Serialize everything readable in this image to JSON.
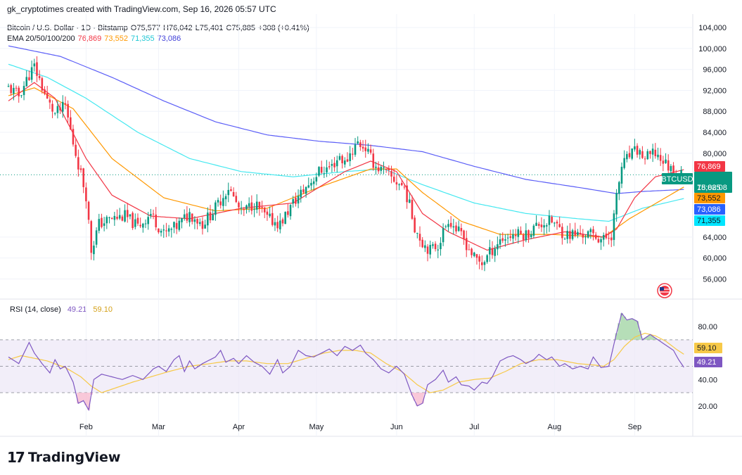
{
  "header": {
    "text": "gk_cryptotimes created with TradingView.com, Sep 16, 2026 05:57 UTC"
  },
  "ohlc": {
    "symbol": "Bitcoin / U.S. Dollar · 1D · Bitstamp",
    "o_label": "O",
    "o": "75,577",
    "h_label": "H",
    "h": "76,042",
    "l_label": "L",
    "l": "75,401",
    "c_label": "C",
    "c": "75,885",
    "change": "+308 (+0.41%)"
  },
  "ema": {
    "label": "EMA 20/50/100/200",
    "v20": "76,869",
    "v50": "73,552",
    "v100": "71,355",
    "v200": "73,086"
  },
  "rsi_legend": {
    "label": "RSI (14, close)",
    "rsi": "49.21",
    "ma": "59.10"
  },
  "price_badges": {
    "symbol": "BTCUSD",
    "last": "75,885",
    "countdown": "18:02:08",
    "ema20": "76,869",
    "ema50": "73,552",
    "ema200": "73,086",
    "ema100": "71,355",
    "rsi": "49.21",
    "rsi_ma": "59.10"
  },
  "colors": {
    "up": "#089981",
    "down": "#f23645",
    "ema20": "#f23645",
    "ema50": "#ff9800",
    "ema100": "#45e8f0",
    "ema200": "#5b5ef7",
    "rsi": "#7e57c2",
    "rsi_ma": "#f7c948",
    "rsi_band": "#ede7f6"
  },
  "logo": {
    "text": "TradingView",
    "mark": "17"
  },
  "chart_data": [
    {
      "type": "candlestick",
      "title": "Bitcoin / U.S. Dollar · 1D · Bitstamp",
      "x_labels": [
        "Feb",
        "Mar",
        "Apr",
        "May",
        "Jun",
        "Jul",
        "Aug",
        "Sep"
      ],
      "y_ticks": [
        104000,
        100000,
        96000,
        92000,
        88000,
        84000,
        80000,
        64000,
        60000,
        56000
      ],
      "y_tick_labels": [
        "104,000",
        "100,000",
        "96,000",
        "92,000",
        "88,000",
        "84,000",
        "80,000",
        "64,000",
        "60,000",
        "56,000"
      ],
      "ylim": [
        53500,
        105500
      ],
      "grid": true,
      "close_path": [
        [
          0,
          92500
        ],
        [
          4,
          91000
        ],
        [
          8,
          95000
        ],
        [
          10,
          96500
        ],
        [
          12,
          94000
        ],
        [
          15,
          90000
        ],
        [
          18,
          87500
        ],
        [
          22,
          89000
        ],
        [
          25,
          82000
        ],
        [
          28,
          76000
        ],
        [
          30,
          72000
        ],
        [
          32,
          61500
        ],
        [
          35,
          66500
        ],
        [
          40,
          67500
        ],
        [
          45,
          68000
        ],
        [
          50,
          66000
        ],
        [
          55,
          68500
        ],
        [
          60,
          64500
        ],
        [
          65,
          66000
        ],
        [
          70,
          68500
        ],
        [
          75,
          66500
        ],
        [
          80,
          69500
        ],
        [
          85,
          73500
        ],
        [
          90,
          68500
        ],
        [
          95,
          70500
        ],
        [
          100,
          67500
        ],
        [
          105,
          66500
        ],
        [
          110,
          70500
        ],
        [
          115,
          73500
        ],
        [
          120,
          76500
        ],
        [
          125,
          77500
        ],
        [
          128,
          79500
        ],
        [
          130,
          78000
        ],
        [
          132,
          80000
        ],
        [
          135,
          82000
        ],
        [
          138,
          81000
        ],
        [
          140,
          79000
        ],
        [
          142,
          77500
        ],
        [
          145,
          76500
        ],
        [
          150,
          74500
        ],
        [
          153,
          73500
        ],
        [
          155,
          70000
        ],
        [
          157,
          66000
        ],
        [
          160,
          63000
        ],
        [
          163,
          61500
        ],
        [
          166,
          62500
        ],
        [
          170,
          67500
        ],
        [
          173,
          65500
        ],
        [
          176,
          63500
        ],
        [
          180,
          60000
        ],
        [
          183,
          59000
        ],
        [
          186,
          61000
        ],
        [
          190,
          63500
        ],
        [
          195,
          64500
        ],
        [
          200,
          64500
        ],
        [
          205,
          66500
        ],
        [
          210,
          67000
        ],
        [
          215,
          64500
        ],
        [
          220,
          64500
        ],
        [
          225,
          64500
        ],
        [
          230,
          63500
        ],
        [
          233,
          64500
        ],
        [
          235,
          71500
        ],
        [
          237,
          77500
        ],
        [
          240,
          79500
        ],
        [
          243,
          80500
        ],
        [
          246,
          79000
        ],
        [
          250,
          80000
        ],
        [
          255,
          77500
        ],
        [
          258,
          76000
        ],
        [
          261,
          75885
        ]
      ],
      "ema20_path": [
        [
          0,
          90000
        ],
        [
          10,
          93500
        ],
        [
          18,
          90500
        ],
        [
          30,
          79000
        ],
        [
          40,
          72000
        ],
        [
          55,
          68000
        ],
        [
          70,
          67500
        ],
        [
          90,
          69500
        ],
        [
          110,
          70500
        ],
        [
          130,
          76500
        ],
        [
          140,
          78500
        ],
        [
          150,
          76500
        ],
        [
          160,
          68500
        ],
        [
          170,
          65000
        ],
        [
          185,
          61500
        ],
        [
          200,
          63500
        ],
        [
          215,
          65000
        ],
        [
          230,
          64000
        ],
        [
          235,
          65500
        ],
        [
          242,
          71500
        ],
        [
          250,
          75500
        ],
        [
          261,
          76869
        ]
      ],
      "ema50_path": [
        [
          0,
          91000
        ],
        [
          10,
          92500
        ],
        [
          25,
          88500
        ],
        [
          40,
          79000
        ],
        [
          60,
          71500
        ],
        [
          80,
          69000
        ],
        [
          100,
          69500
        ],
        [
          120,
          73500
        ],
        [
          140,
          77000
        ],
        [
          150,
          77000
        ],
        [
          160,
          72500
        ],
        [
          175,
          67000
        ],
        [
          190,
          64500
        ],
        [
          210,
          64500
        ],
        [
          230,
          64000
        ],
        [
          240,
          67500
        ],
        [
          261,
          73552
        ]
      ],
      "ema100_path": [
        [
          0,
          97000
        ],
        [
          15,
          94500
        ],
        [
          30,
          90500
        ],
        [
          50,
          84000
        ],
        [
          70,
          79000
        ],
        [
          90,
          76500
        ],
        [
          110,
          75500
        ],
        [
          130,
          76500
        ],
        [
          145,
          77000
        ],
        [
          160,
          74000
        ],
        [
          180,
          70500
        ],
        [
          200,
          68500
        ],
        [
          220,
          67500
        ],
        [
          232,
          67000
        ],
        [
          245,
          69500
        ],
        [
          261,
          71355
        ]
      ],
      "ema200_path": [
        [
          0,
          100500
        ],
        [
          20,
          98500
        ],
        [
          40,
          94500
        ],
        [
          60,
          90000
        ],
        [
          80,
          86000
        ],
        [
          100,
          83500
        ],
        [
          120,
          82300
        ],
        [
          140,
          81500
        ],
        [
          160,
          80300
        ],
        [
          180,
          77500
        ],
        [
          200,
          75000
        ],
        [
          220,
          73500
        ],
        [
          235,
          72300
        ],
        [
          245,
          72700
        ],
        [
          261,
          73086
        ]
      ]
    },
    {
      "type": "line",
      "title": "RSI (14, close)",
      "y_ticks": [
        80,
        40,
        20
      ],
      "y_tick_labels": [
        "80.00",
        "40.00",
        "20.00"
      ],
      "ylim": [
        13,
        96
      ],
      "bands": [
        70,
        50,
        30
      ],
      "series": [
        {
          "name": "RSI",
          "points": [
            [
              0,
              57
            ],
            [
              4,
              52
            ],
            [
              6,
              60
            ],
            [
              8,
              68
            ],
            [
              10,
              60
            ],
            [
              13,
              52
            ],
            [
              16,
              45
            ],
            [
              18,
              55
            ],
            [
              20,
              48
            ],
            [
              22,
              50
            ],
            [
              25,
              38
            ],
            [
              27,
              22
            ],
            [
              29,
              24
            ],
            [
              31,
              17
            ],
            [
              33,
              40
            ],
            [
              36,
              44
            ],
            [
              40,
              42
            ],
            [
              44,
              40
            ],
            [
              48,
              43
            ],
            [
              52,
              40
            ],
            [
              56,
              48
            ],
            [
              58,
              50
            ],
            [
              61,
              46
            ],
            [
              64,
              55
            ],
            [
              66,
              58
            ],
            [
              68,
              46
            ],
            [
              70,
              54
            ],
            [
              72,
              48
            ],
            [
              75,
              52
            ],
            [
              78,
              55
            ],
            [
              80,
              57
            ],
            [
              82,
              62
            ],
            [
              84,
              53
            ],
            [
              87,
              56
            ],
            [
              89,
              52
            ],
            [
              92,
              58
            ],
            [
              95,
              53
            ],
            [
              98,
              50
            ],
            [
              101,
              44
            ],
            [
              104,
              55
            ],
            [
              106,
              45
            ],
            [
              109,
              50
            ],
            [
              112,
              62
            ],
            [
              115,
              58
            ],
            [
              118,
              57
            ],
            [
              121,
              60
            ],
            [
              124,
              63
            ],
            [
              127,
              58
            ],
            [
              130,
              65
            ],
            [
              133,
              62
            ],
            [
              136,
              66
            ],
            [
              138,
              60
            ],
            [
              141,
              55
            ],
            [
              144,
              48
            ],
            [
              147,
              45
            ],
            [
              150,
              50
            ],
            [
              153,
              44
            ],
            [
              156,
              28
            ],
            [
              158,
              20
            ],
            [
              160,
              22
            ],
            [
              162,
              36
            ],
            [
              165,
              40
            ],
            [
              168,
              47
            ],
            [
              170,
              38
            ],
            [
              173,
              42
            ],
            [
              175,
              36
            ],
            [
              178,
              35
            ],
            [
              180,
              32
            ],
            [
              183,
              38
            ],
            [
              185,
              37
            ],
            [
              187,
              42
            ],
            [
              190,
              54
            ],
            [
              193,
              57
            ],
            [
              195,
              58
            ],
            [
              198,
              55
            ],
            [
              200,
              52
            ],
            [
              203,
              55
            ],
            [
              205,
              59
            ],
            [
              208,
              55
            ],
            [
              210,
              57
            ],
            [
              213,
              50
            ],
            [
              215,
              52
            ],
            [
              218,
              48
            ],
            [
              221,
              50
            ],
            [
              224,
              48
            ],
            [
              226,
              57
            ],
            [
              229,
              49
            ],
            [
              232,
              50
            ],
            [
              235,
              75
            ],
            [
              237,
              90
            ],
            [
              239,
              85
            ],
            [
              241,
              86
            ],
            [
              243,
              84
            ],
            [
              245,
              70
            ],
            [
              248,
              74
            ],
            [
              251,
              70
            ],
            [
              254,
              66
            ],
            [
              257,
              62
            ],
            [
              259,
              55
            ],
            [
              261,
              49.21
            ]
          ]
        },
        {
          "name": "RSI-based MA",
          "points": [
            [
              0,
              55
            ],
            [
              5,
              58
            ],
            [
              10,
              56
            ],
            [
              15,
              54
            ],
            [
              22,
              49
            ],
            [
              28,
              42
            ],
            [
              32,
              35
            ],
            [
              36,
              30
            ],
            [
              42,
              34
            ],
            [
              48,
              38
            ],
            [
              55,
              42
            ],
            [
              62,
              46
            ],
            [
              70,
              50
            ],
            [
              78,
              52
            ],
            [
              85,
              54
            ],
            [
              92,
              54
            ],
            [
              100,
              52
            ],
            [
              108,
              52
            ],
            [
              115,
              56
            ],
            [
              122,
              60
            ],
            [
              128,
              62
            ],
            [
              134,
              62
            ],
            [
              140,
              60
            ],
            [
              146,
              52
            ],
            [
              152,
              46
            ],
            [
              158,
              36
            ],
            [
              163,
              30
            ],
            [
              168,
              32
            ],
            [
              174,
              38
            ],
            [
              180,
              40
            ],
            [
              186,
              41
            ],
            [
              192,
              46
            ],
            [
              198,
              52
            ],
            [
              205,
              55
            ],
            [
              212,
              55
            ],
            [
              220,
              52
            ],
            [
              226,
              51
            ],
            [
              230,
              50
            ],
            [
              234,
              55
            ],
            [
              238,
              65
            ],
            [
              242,
              72
            ],
            [
              246,
              75
            ],
            [
              250,
              73
            ],
            [
              254,
              69
            ],
            [
              258,
              63
            ],
            [
              261,
              59.1
            ]
          ]
        }
      ]
    }
  ]
}
